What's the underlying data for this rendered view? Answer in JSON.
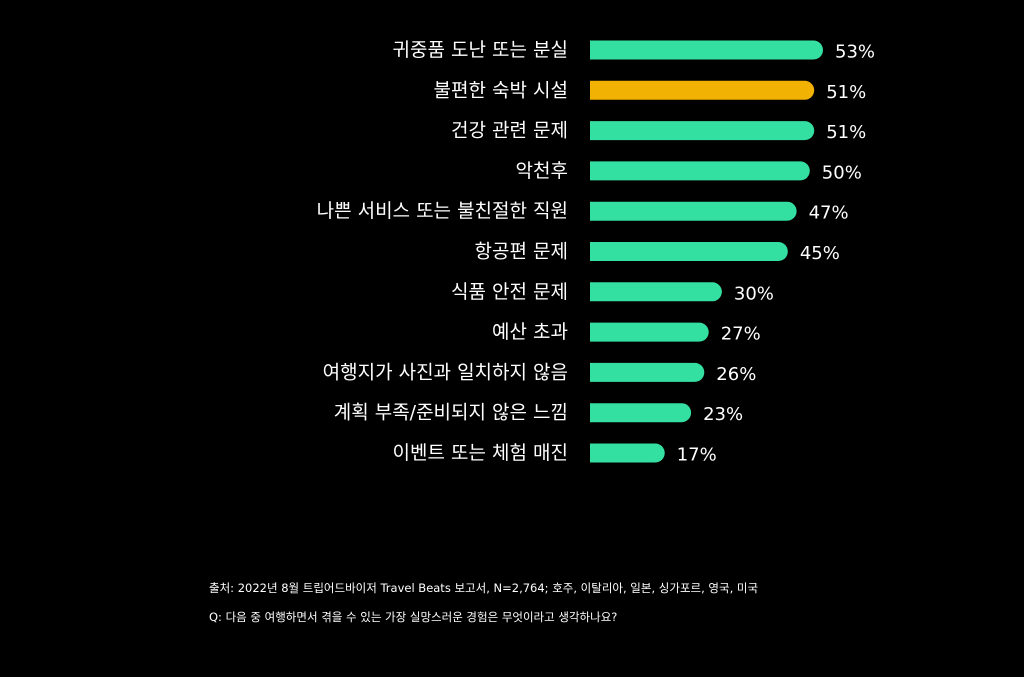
{
  "chart_data": {
    "type": "bar",
    "orientation": "horizontal",
    "categories": [
      "귀중품 도난 또는 분실",
      "불편한 숙박 시설",
      "건강 관련 문제",
      "악천후",
      "나쁜 서비스 또는 불친절한 직원",
      "항공편 문제",
      "식품 안전 문제",
      "예산 초과",
      "여행지가 사진과 일치하지 않음",
      "계획 부족/준비되지 않은 느낌",
      "이벤트 또는 체험 매진"
    ],
    "values": [
      53,
      51,
      51,
      50,
      47,
      45,
      30,
      27,
      26,
      23,
      17
    ],
    "value_labels": [
      "53%",
      "51%",
      "51%",
      "50%",
      "47%",
      "45%",
      "30%",
      "27%",
      "26%",
      "23%",
      "17%"
    ],
    "highlight_index": 1,
    "colors": {
      "bar": "#34E0A1",
      "highlight": "#F2B203",
      "background": "#000000",
      "text": "#FFFFFF"
    },
    "grid": false,
    "legend": "none"
  },
  "footer": {
    "source": "출처: 2022년 8월 트립어드바이저 Travel Beats 보고서, N=2,764; 호주, 이탈리아, 일본, 싱가포르, 영국, 미국",
    "question": "Q: 다음 중 여행하면서 겪을 수 있는 가장 실망스러운 경험은 무엇이라고 생각하나요?"
  }
}
